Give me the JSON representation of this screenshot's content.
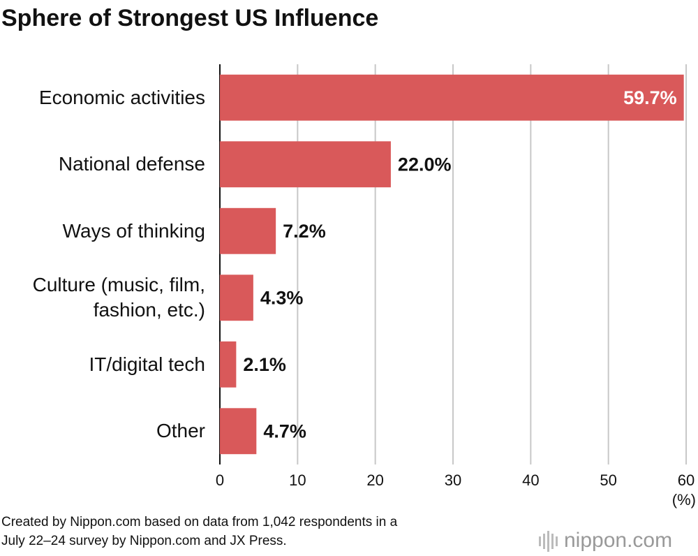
{
  "chart_data": {
    "type": "hbar",
    "title": "Sphere of Strongest US Influence",
    "categories": [
      "Economic activities",
      "National defense",
      "Ways of thinking",
      "Culture (music, film,\nfashion, etc.)",
      "IT/digital tech",
      "Other"
    ],
    "values": [
      59.7,
      22.0,
      7.2,
      4.3,
      2.1,
      4.7
    ],
    "value_labels": [
      "59.7%",
      "22.0%",
      "7.2%",
      "4.3%",
      "2.1%",
      "4.7%"
    ],
    "color": "#d9595a",
    "xlim": [
      0,
      60
    ],
    "xticks": [
      0,
      10,
      20,
      30,
      40,
      50,
      60
    ],
    "grid": true,
    "x_label": "(%)",
    "source": "Created by Nippon.com based on data from 1,042 respondents in a\nJuly 22–24 survey by Nippon.com and JX Press.",
    "logo": "nippon.com"
  }
}
